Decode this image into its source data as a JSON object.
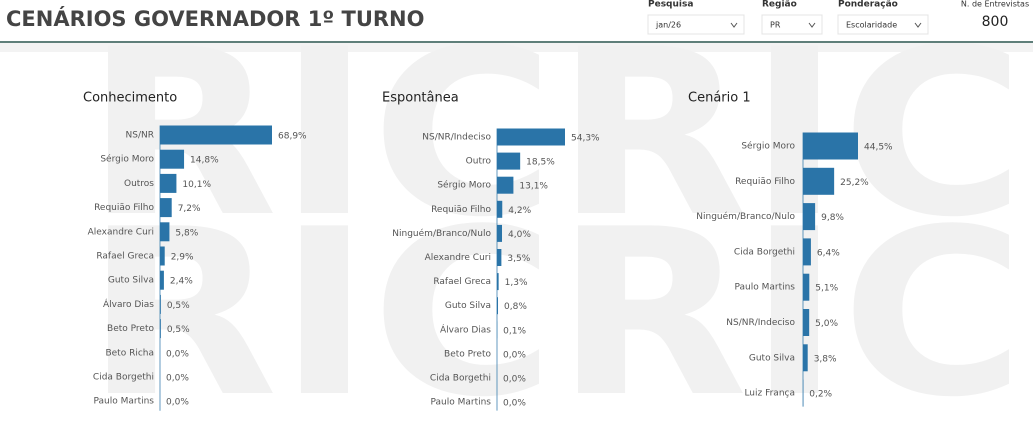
{
  "header": {
    "title": "CENÁRIOS GOVERNADOR 1º TURNO",
    "filters": [
      {
        "label": "Pesquisa",
        "value": "jan/26"
      },
      {
        "label": "Região",
        "value": "PR"
      },
      {
        "label": "Ponderação",
        "value": "Escolaridade"
      }
    ],
    "interviews": {
      "label": "N. de Entrevistas",
      "value": 800
    }
  },
  "watermark": "RICRIC",
  "chart_data": [
    {
      "type": "bar",
      "orientation": "horizontal",
      "title": "Conhecimento",
      "color": "#2a74a8",
      "categories": [
        "NS/NR",
        "Sérgio Moro",
        "Outros",
        "Requião Filho",
        "Alexandre Curi",
        "Rafael Greca",
        "Guto Silva",
        "Álvaro Dias",
        "Beto Preto",
        "Beto Richa",
        "Cida Borgethi",
        "Paulo Martins"
      ],
      "values": [
        68.9,
        14.8,
        10.1,
        7.2,
        5.8,
        2.9,
        2.4,
        0.5,
        0.5,
        0.0,
        0.0,
        0.0
      ],
      "value_labels": [
        "68,9%",
        "14,8%",
        "10,1%",
        "7,2%",
        "5,8%",
        "2,9%",
        "2,4%",
        "0,5%",
        "0,5%",
        "0,0%",
        "0,0%",
        "0,0%"
      ]
    },
    {
      "type": "bar",
      "orientation": "horizontal",
      "title": "Espontânea",
      "color": "#2a74a8",
      "categories": [
        "NS/NR/Indeciso",
        "Outro",
        "Sérgio Moro",
        "Requião Filho",
        "Ninguém/Branco/Nulo",
        "Alexandre Curi",
        "Rafael Greca",
        "Guto Silva",
        "Álvaro Dias",
        "Beto Preto",
        "Cida Borgethi",
        "Paulo Martins"
      ],
      "values": [
        54.3,
        18.5,
        13.1,
        4.2,
        4.0,
        3.5,
        1.3,
        0.8,
        0.1,
        0.0,
        0.0,
        0.0
      ],
      "value_labels": [
        "54,3%",
        "18,5%",
        "13,1%",
        "4,2%",
        "4,0%",
        "3,5%",
        "1,3%",
        "0,8%",
        "0,1%",
        "0,0%",
        "0,0%",
        "0,0%"
      ]
    },
    {
      "type": "bar",
      "orientation": "horizontal",
      "title": "Cenário 1",
      "color": "#2a74a8",
      "categories": [
        "Sérgio Moro",
        "Requião Filho",
        "Ninguém/Branco/Nulo",
        "Cida Borgethi",
        "Paulo Martins",
        "NS/NR/Indeciso",
        "Guto Silva",
        "Luiz França"
      ],
      "values": [
        44.5,
        25.2,
        9.8,
        6.4,
        5.1,
        5.0,
        3.8,
        0.2
      ],
      "value_labels": [
        "44,5%",
        "25,2%",
        "9,8%",
        "6,4%",
        "5,1%",
        "5,0%",
        "3,8%",
        "0,2%"
      ]
    }
  ]
}
